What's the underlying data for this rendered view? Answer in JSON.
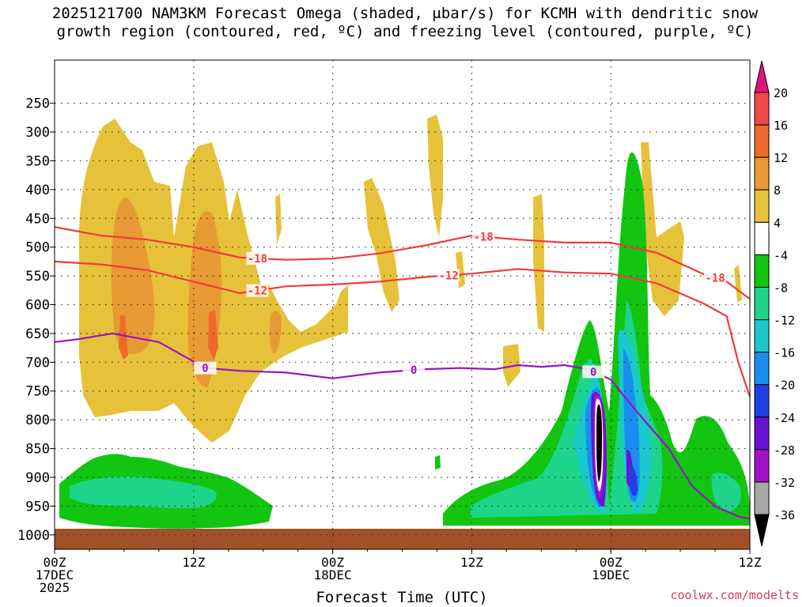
{
  "title": {
    "line1": "2025121700 NAM3KM Forecast Omega (shaded, μbar/s) for KCMH with dendritic snow",
    "line2": "growth region (contoured, red, ºC) and freezing level (contoured, purple, ºC)"
  },
  "credit": "coolwx.com/modelts",
  "chart_data": {
    "type": "heatmap",
    "title": "2025121700 NAM3KM Forecast Omega (shaded, μbar/s) for KCMH with dendritic snow growth region (contoured, red, ºC) and freezing level (contoured, purple, ºC)",
    "xlabel": "Forecast Time (UTC)",
    "ylabel": "Pressure (hPa)",
    "x_range_hours": [
      0,
      60
    ],
    "y_range_hpa": [
      1025,
      175
    ],
    "y_ticks": [
      250,
      300,
      350,
      400,
      450,
      500,
      550,
      600,
      650,
      700,
      750,
      800,
      850,
      900,
      950,
      1000
    ],
    "x_ticks": [
      {
        "hour": 0,
        "lines": [
          "00Z",
          "17DEC",
          "2025"
        ]
      },
      {
        "hour": 12,
        "lines": [
          "12Z"
        ]
      },
      {
        "hour": 24,
        "lines": [
          "00Z",
          "18DEC"
        ]
      },
      {
        "hour": 36,
        "lines": [
          "12Z"
        ]
      },
      {
        "hour": 48,
        "lines": [
          "00Z",
          "19DEC"
        ]
      },
      {
        "hour": 60,
        "lines": [
          "12Z"
        ]
      }
    ],
    "colorbar": {
      "levels": [
        20,
        16,
        12,
        8,
        4,
        -4,
        -8,
        -12,
        -16,
        -20,
        -24,
        -28,
        -32,
        -36
      ],
      "bands": [
        {
          "label": "> 20",
          "color": "#e0157a"
        },
        {
          "label": "16 to 20",
          "color": "#f04848"
        },
        {
          "label": "12 to 16",
          "color": "#ee6a2c"
        },
        {
          "label": "8 to 12",
          "color": "#e89a34"
        },
        {
          "label": "4 to 8",
          "color": "#e6c23a"
        },
        {
          "label": "-4 to 4",
          "color": "#ffffff"
        },
        {
          "label": "-8 to -4",
          "color": "#11c511"
        },
        {
          "label": "-12 to -8",
          "color": "#1ed48a"
        },
        {
          "label": "-16 to -12",
          "color": "#19c8cc"
        },
        {
          "label": "-20 to -16",
          "color": "#1a8ef0"
        },
        {
          "label": "-24 to -20",
          "color": "#1f3ee6"
        },
        {
          "label": "-28 to -24",
          "color": "#6a12d4"
        },
        {
          "label": "-32 to -28",
          "color": "#a312c8"
        },
        {
          "label": "-36 to -32",
          "color": "#a8a8a8"
        },
        {
          "label": "< -36",
          "color": "#000000"
        }
      ]
    },
    "ground_color": "#a1502a",
    "contours": [
      {
        "name": "-18C isotherm",
        "color": "#f23a3a",
        "label": "-18",
        "hours": [
          0,
          4,
          8,
          12,
          16,
          20,
          24,
          28,
          32,
          36,
          40,
          44,
          48,
          52,
          56,
          58,
          60
        ],
        "hpa": [
          465,
          480,
          487,
          500,
          518,
          522,
          520,
          511,
          497,
          480,
          487,
          492,
          492,
          510,
          547,
          560,
          590
        ],
        "label_hours": [
          17.5,
          37,
          57
        ]
      },
      {
        "name": "-12C isotherm",
        "color": "#f23a3a",
        "label": "-12",
        "hours": [
          0,
          4,
          8,
          12,
          16,
          20,
          24,
          28,
          32,
          36,
          40,
          44,
          48,
          52,
          56,
          58,
          59,
          60
        ],
        "hpa": [
          525,
          530,
          540,
          560,
          580,
          568,
          565,
          560,
          552,
          546,
          538,
          544,
          546,
          563,
          598,
          620,
          700,
          760
        ],
        "label_hours": [
          17.5,
          34
        ]
      },
      {
        "name": "0C freezing level",
        "color": "#9c12c8",
        "label": "0",
        "hours": [
          0,
          2,
          5,
          9,
          13,
          16,
          20,
          24,
          28,
          32,
          35,
          38,
          40,
          42,
          44,
          46,
          48,
          50,
          53,
          55,
          57,
          59,
          60
        ],
        "hpa": [
          665,
          660,
          650,
          665,
          710,
          715,
          718,
          728,
          718,
          712,
          710,
          712,
          705,
          708,
          705,
          712,
          730,
          780,
          850,
          915,
          950,
          968,
          972
        ],
        "label_hours": [
          13,
          31,
          46.5
        ]
      }
    ],
    "omega_features": [
      {
        "desc": "upward motion column near 00Z-19DEC",
        "hour": 47.5,
        "min_hpa": 665,
        "max_hpa": 930,
        "peak_ubar_s": -40
      },
      {
        "desc": "sinking motion 17DEC",
        "hour": 6,
        "peak_ubar_s": 14
      }
    ]
  }
}
